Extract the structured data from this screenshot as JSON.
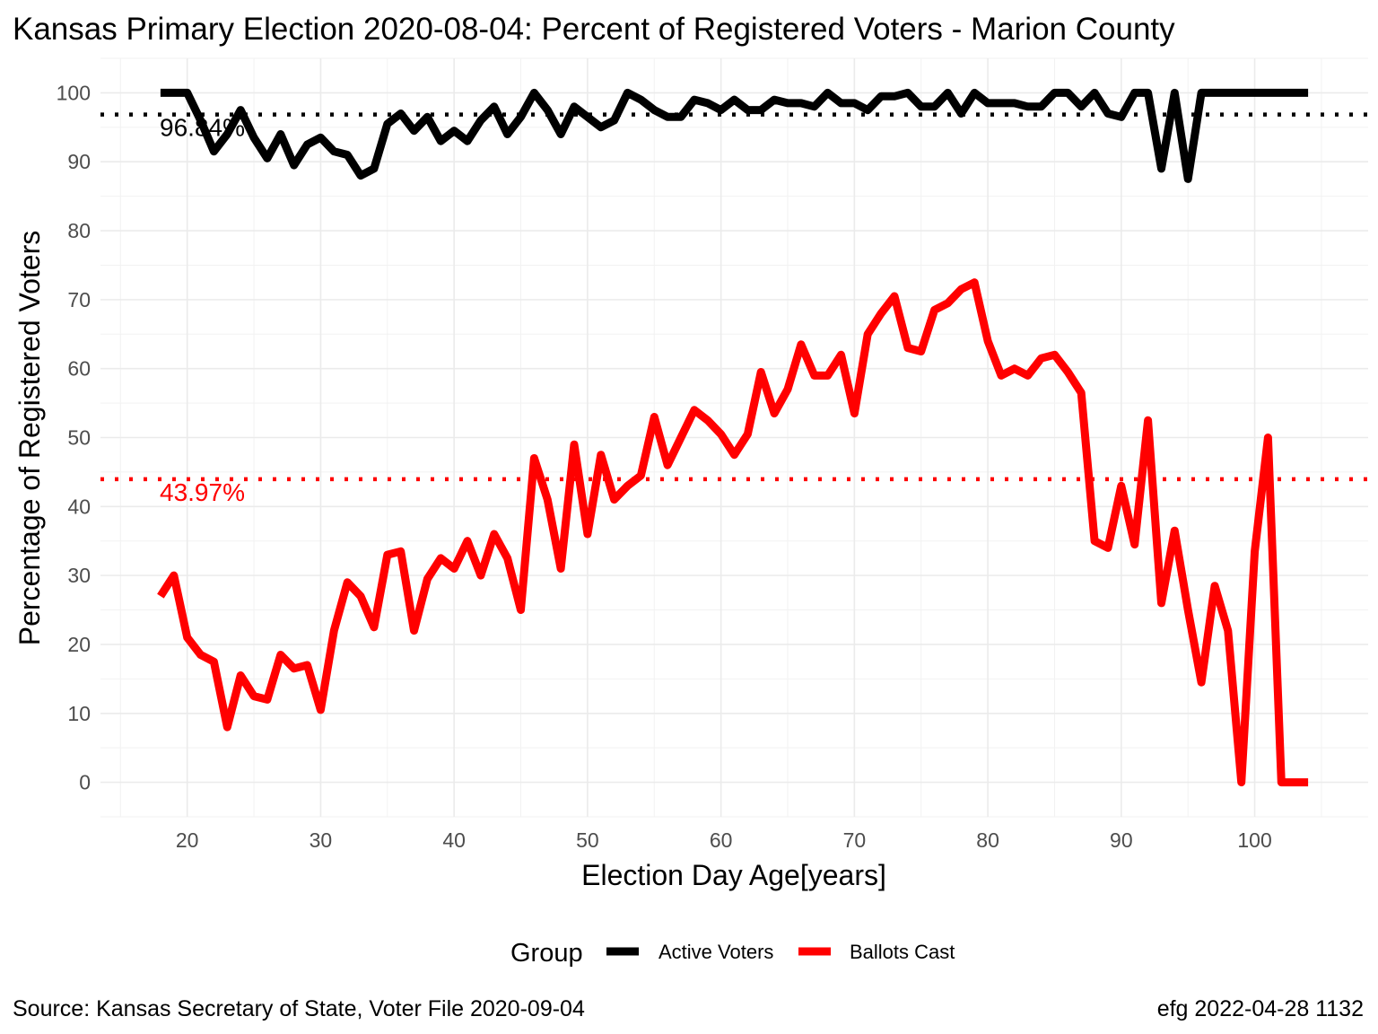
{
  "chart_data": {
    "type": "line",
    "title": "Kansas Primary Election 2020-08-04:  Percent of Registered Voters - Marion County",
    "xlabel": "Election Day Age[years]",
    "ylabel": "Percentage of Registered Voters",
    "xlim": [
      13.5,
      108.5
    ],
    "ylim": [
      -5,
      105
    ],
    "x_ticks": [
      20,
      30,
      40,
      50,
      60,
      70,
      80,
      90,
      100
    ],
    "y_ticks": [
      0,
      10,
      20,
      30,
      40,
      50,
      60,
      70,
      80,
      90,
      100
    ],
    "grid": true,
    "legend": {
      "title": "Group",
      "position": "bottom",
      "entries": [
        "Active Voters",
        "Ballots Cast"
      ]
    },
    "x": [
      18,
      19,
      20,
      21,
      22,
      23,
      24,
      25,
      26,
      27,
      28,
      29,
      30,
      31,
      32,
      33,
      34,
      35,
      36,
      37,
      38,
      39,
      40,
      41,
      42,
      43,
      44,
      45,
      46,
      47,
      48,
      49,
      50,
      51,
      52,
      53,
      54,
      55,
      56,
      57,
      58,
      59,
      60,
      61,
      62,
      63,
      64,
      65,
      66,
      67,
      68,
      69,
      70,
      71,
      72,
      73,
      74,
      75,
      76,
      77,
      78,
      79,
      80,
      81,
      82,
      83,
      84,
      85,
      86,
      87,
      88,
      89,
      90,
      91,
      92,
      93,
      94,
      95,
      96,
      97,
      98,
      99,
      100,
      101,
      102,
      103,
      104
    ],
    "series": [
      {
        "name": "Active Voters",
        "color": "#000000",
        "values": [
          100,
          100,
          100,
          96,
          91.5,
          94,
          97.5,
          93.5,
          90.5,
          94,
          89.5,
          92.5,
          93.5,
          91.5,
          91,
          88,
          89,
          95.5,
          97,
          94.5,
          96.5,
          93,
          94.5,
          93,
          96,
          98,
          94,
          96.5,
          100,
          97.5,
          94,
          98,
          96.5,
          95,
          96,
          100,
          99,
          97.5,
          96.5,
          96.5,
          99,
          98.5,
          97.5,
          99,
          97.5,
          97.5,
          99,
          98.5,
          98.5,
          98,
          100,
          98.5,
          98.5,
          97.5,
          99.5,
          99.5,
          100,
          98,
          98,
          100,
          97,
          100,
          98.5,
          98.5,
          98.5,
          98,
          98,
          100,
          100,
          98,
          100,
          97,
          96.5,
          100,
          100,
          89,
          100,
          87.5,
          100,
          100,
          100,
          100,
          100,
          100,
          100,
          100,
          100
        ]
      },
      {
        "name": "Ballots Cast",
        "color": "#ff0000",
        "values": [
          27,
          30,
          21,
          18.5,
          17.5,
          8,
          15.5,
          12.5,
          12,
          18.5,
          16.5,
          17,
          10.5,
          22,
          29,
          27,
          22.5,
          33,
          33.5,
          22,
          29.5,
          32.5,
          31,
          35,
          30,
          36,
          32.5,
          25,
          47,
          41,
          31,
          49,
          36,
          47.5,
          41,
          43,
          44.5,
          53,
          46,
          50,
          54,
          52.5,
          50.5,
          47.5,
          50.5,
          59.5,
          53.5,
          57,
          63.5,
          59,
          59,
          62,
          53.5,
          65,
          68,
          70.5,
          63,
          62.5,
          68.5,
          69.5,
          71.5,
          72.5,
          64,
          59,
          60,
          59,
          61.5,
          62,
          59.5,
          56.5,
          35,
          34,
          43,
          34.5,
          52.5,
          26,
          36.5,
          25,
          14.5,
          28.5,
          22,
          0,
          33.5,
          50,
          0,
          0,
          0
        ]
      }
    ],
    "reference_lines": [
      {
        "series": "Active Voters",
        "value": 96.84,
        "label": "96.84%",
        "color": "#000000"
      },
      {
        "series": "Ballots Cast",
        "value": 43.97,
        "label": "43.97%",
        "color": "#ff0000"
      }
    ],
    "caption_left": "Source:  Kansas Secretary of State, Voter File  2020-09-04",
    "caption_right": "efg 2022-04-28 1132"
  }
}
